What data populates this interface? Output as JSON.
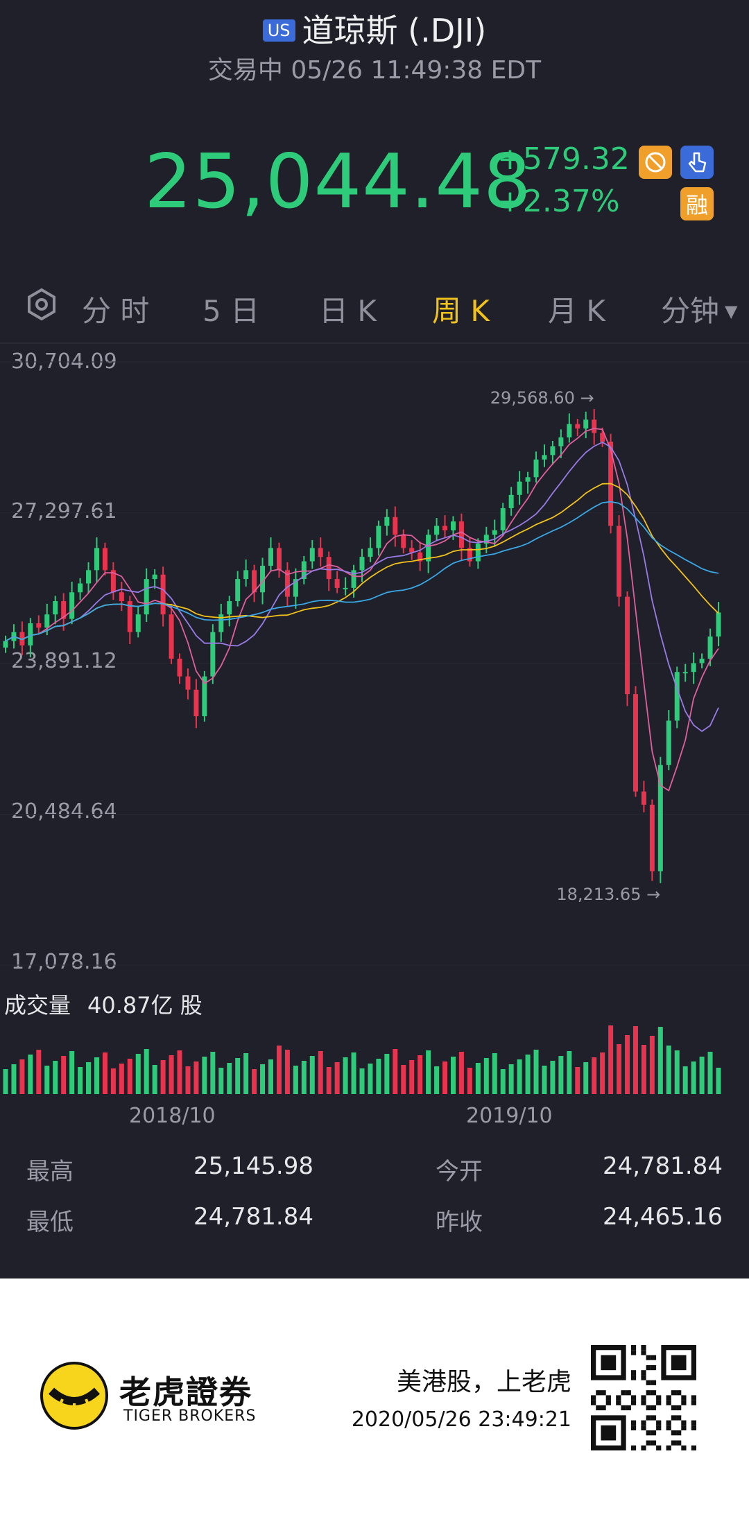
{
  "header": {
    "market_badge": "US",
    "title": "道琼斯 (.DJI)",
    "status": "交易中 05/26 11:49:38 EDT",
    "price": "25,044.48",
    "change": "+579.32",
    "change_pct": "+2.37%",
    "margin_badge": "融",
    "price_color": "#2ecc7a"
  },
  "tabs": [
    {
      "label": "分 时"
    },
    {
      "label": "5 日"
    },
    {
      "label": "日 K"
    },
    {
      "label": "周 K",
      "active": true
    },
    {
      "label": "月 K"
    },
    {
      "label": "分钟"
    }
  ],
  "chart": {
    "y_ticks": [
      "30,704.09",
      "27,297.61",
      "23,891.12",
      "20,484.64",
      "17,078.16"
    ],
    "high_marker": "29,568.60",
    "low_marker": "18,213.65",
    "x_ticks": [
      "2018/10",
      "2019/10"
    ],
    "volume_label": "成交量",
    "volume_value": "40.87亿 股",
    "up_color": "#2ecc7a",
    "down_color": "#e8344e"
  },
  "chart_data": {
    "type": "candlestick",
    "ylim": [
      17078.16,
      30704.09
    ],
    "series": [
      {
        "name": "ohlc",
        "note": "weekly candles, approximate",
        "close": [
          24400,
          24600,
          24300,
          24800,
          24700,
          25000,
          25300,
          24900,
          25500,
          25700,
          26000,
          26500,
          26000,
          25500,
          25300,
          24600,
          25000,
          25800,
          25900,
          25000,
          24000,
          23600,
          23300,
          22700,
          23600,
          24600,
          25000,
          25300,
          25800,
          26000,
          25500,
          26100,
          26500,
          26000,
          25400,
          25800,
          26200,
          26500,
          26300,
          25800,
          25600,
          25600,
          26000,
          26300,
          26500,
          27000,
          27200,
          26800,
          26500,
          26400,
          26200,
          26800,
          27000,
          26900,
          27100,
          26500,
          26200,
          26600,
          26800,
          26900,
          27400,
          27700,
          28000,
          28100,
          28500,
          28600,
          28800,
          29000,
          29300,
          29200,
          29400,
          29100,
          28900,
          27000,
          25400,
          23200,
          21000,
          20700,
          19200,
          21600,
          22600,
          23700,
          23700,
          23900,
          24000,
          24500,
          25044
        ]
      }
    ]
  },
  "stats": {
    "high_label": "最高",
    "high": "25,145.98",
    "open_label": "今开",
    "open": "24,781.84",
    "low_label": "最低",
    "low": "24,781.84",
    "prev_label": "昨收",
    "prev": "24,465.16"
  },
  "footer": {
    "brand_cn": "老虎證券",
    "brand_en": "TIGER BROKERS",
    "slogan": "美港股，上老虎",
    "timestamp": "2020/05/26 23:49:21"
  }
}
